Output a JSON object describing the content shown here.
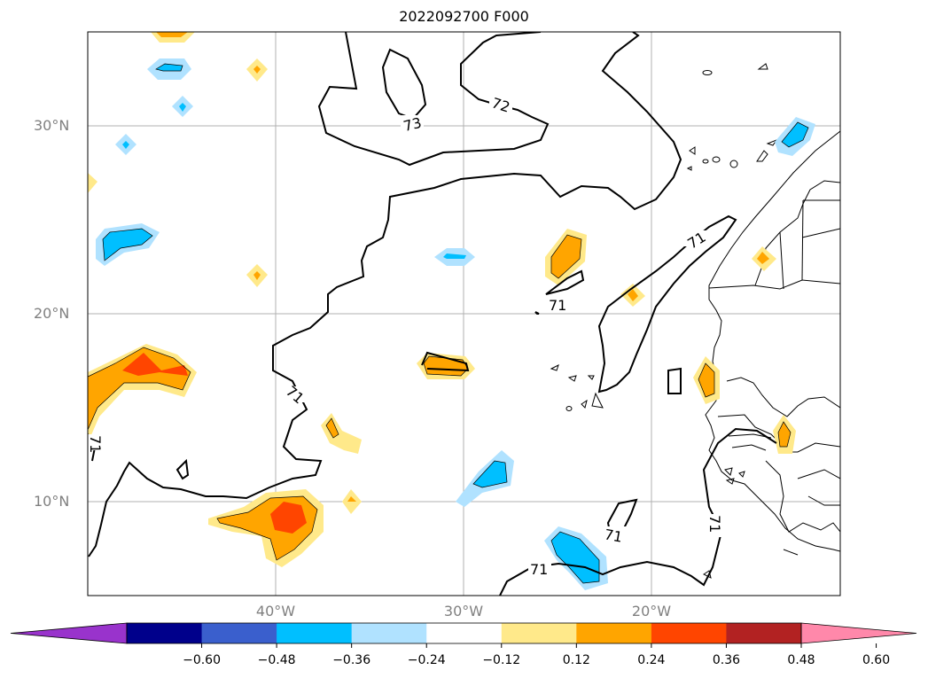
{
  "title": "2022092700 F000",
  "latitude_labels": [
    "30°N",
    "20°N",
    "10°N"
  ],
  "longitude_labels": [
    "40°W",
    "30°W",
    "20°W"
  ],
  "contour_labels": [
    "73",
    "72",
    "71",
    "71",
    "71",
    "71",
    "71",
    "71",
    "71"
  ],
  "colorbar": {
    "ticks": [
      "−0.60",
      "−0.48",
      "−0.36",
      "−0.24",
      "−0.12",
      "0.12",
      "0.24",
      "0.36",
      "0.48",
      "0.60"
    ],
    "colors": [
      "#9933cc",
      "#00008b",
      "#3a5fcd",
      "#00bfff",
      "#b0e2ff",
      "#ffffff",
      "#ffe98a",
      "#ffa500",
      "#ff4500",
      "#b22222",
      "#ff88aa"
    ]
  }
}
